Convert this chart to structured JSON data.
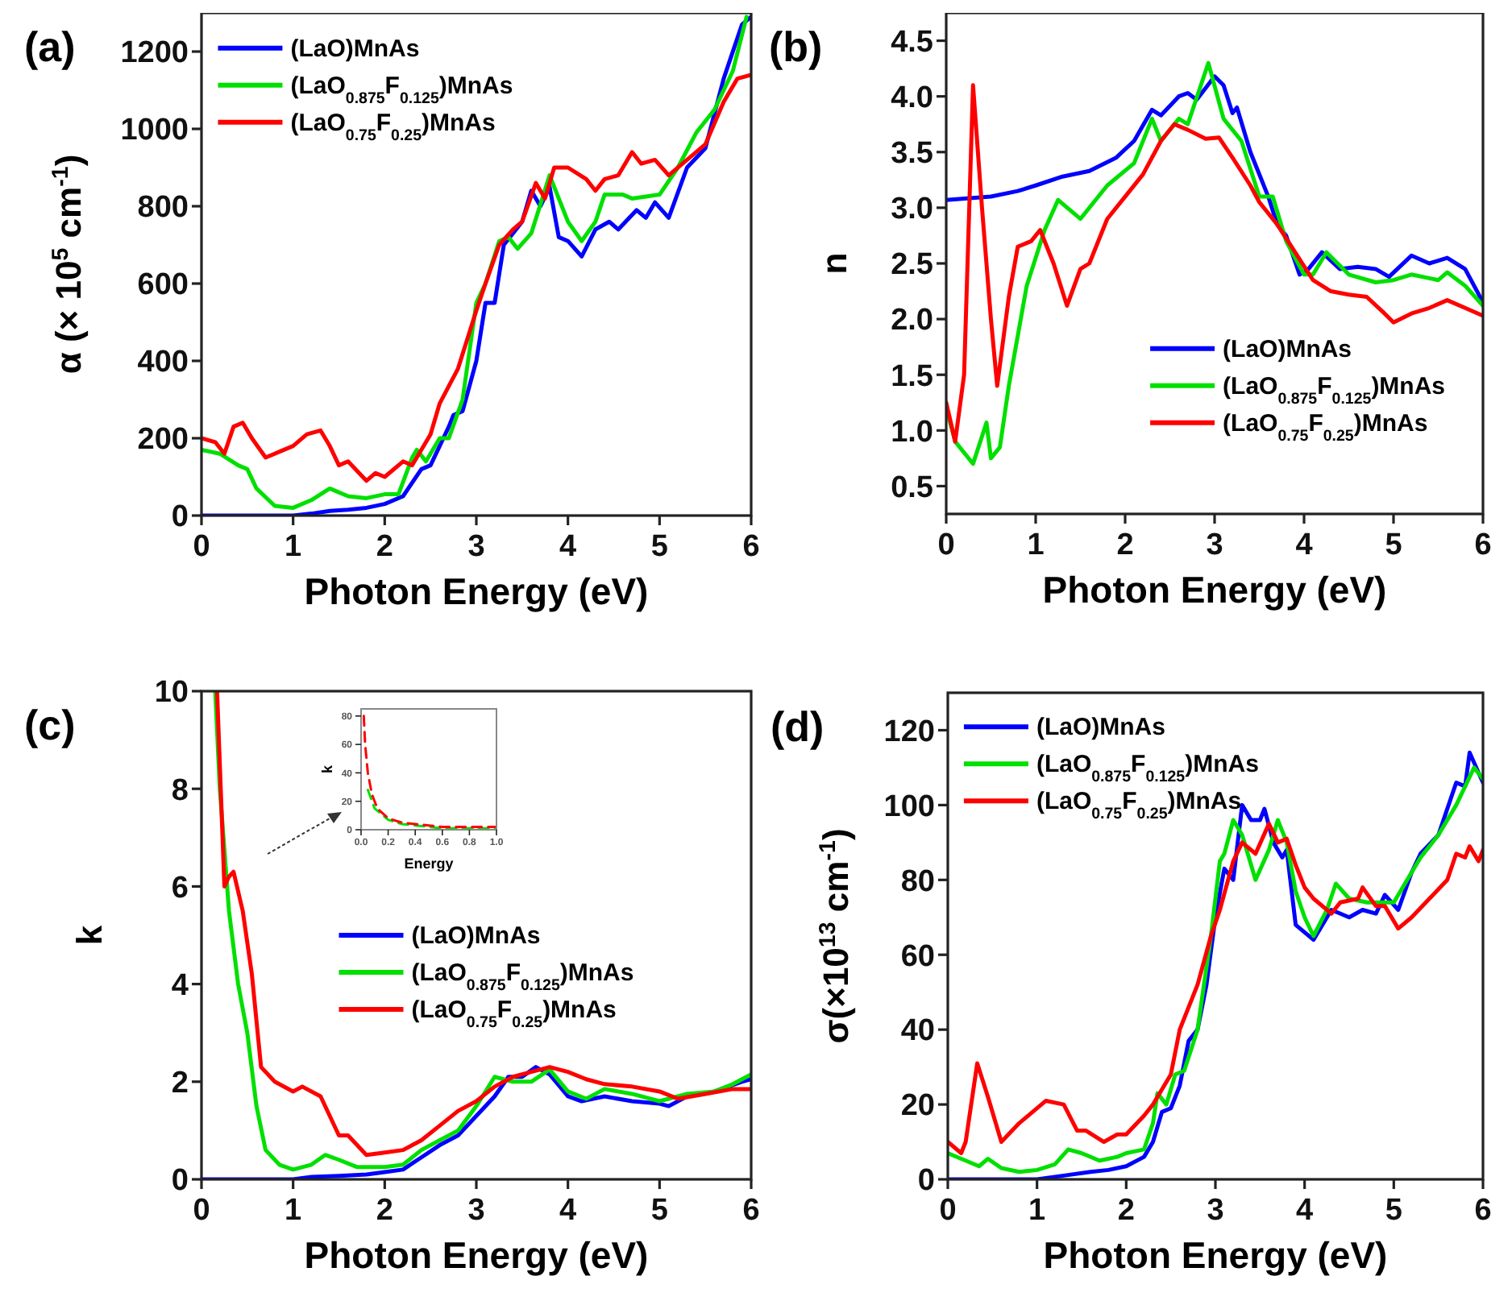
{
  "chart_data": [
    {
      "type": "line",
      "title": "(a)",
      "xlabel": "Photon Energy (eV)",
      "ylabel": "α (× 10$^{5}$ cm$^{-1}$)",
      "xlim": [
        0,
        6
      ],
      "ylim": [
        0,
        1300
      ],
      "xticks": [
        0,
        1,
        2,
        3,
        4,
        5,
        6
      ],
      "yticks": [
        0,
        200,
        400,
        600,
        800,
        1000,
        1200
      ],
      "legend": "top left",
      "series": [
        {
          "name": "(LaO)MnAs",
          "color": "#0000ff",
          "x": [
            0,
            0.5,
            1,
            1.2,
            1.4,
            1.6,
            1.8,
            2,
            2.2,
            2.4,
            2.5,
            2.6,
            2.7,
            2.75,
            2.85,
            3,
            3.1,
            3.2,
            3.3,
            3.4,
            3.5,
            3.6,
            3.7,
            3.8,
            3.9,
            4,
            4.15,
            4.3,
            4.45,
            4.55,
            4.75,
            4.85,
            4.95,
            5.1,
            5.3,
            5.5,
            5.7,
            5.9,
            6
          ],
          "values": [
            0,
            0,
            0,
            5,
            12,
            15,
            20,
            30,
            50,
            120,
            130,
            180,
            230,
            260,
            270,
            400,
            550,
            550,
            700,
            730,
            760,
            840,
            800,
            850,
            720,
            710,
            670,
            740,
            760,
            740,
            790,
            770,
            810,
            770,
            900,
            950,
            1130,
            1270,
            1290
          ]
        },
        {
          "name": "(LaO$_{0.875}$F$_{0.125}$)MnAs",
          "color": "#00e000",
          "x": [
            0,
            0.2,
            0.4,
            0.5,
            0.6,
            0.8,
            1,
            1.2,
            1.4,
            1.6,
            1.8,
            2,
            2.15,
            2.3,
            2.35,
            2.45,
            2.6,
            2.7,
            2.85,
            3,
            3.1,
            3.25,
            3.35,
            3.45,
            3.6,
            3.8,
            4,
            4.15,
            4.3,
            4.4,
            4.6,
            4.7,
            5,
            5.2,
            5.4,
            5.6,
            5.8,
            5.95
          ],
          "values": [
            170,
            160,
            130,
            120,
            70,
            25,
            20,
            40,
            70,
            50,
            45,
            55,
            55,
            150,
            170,
            140,
            200,
            200,
            300,
            550,
            600,
            710,
            720,
            690,
            730,
            880,
            760,
            710,
            760,
            830,
            830,
            820,
            830,
            900,
            990,
            1050,
            1150,
            1290
          ]
        },
        {
          "name": "(LaO$_{0.75}$F$_{0.25}$)MnAs",
          "color": "#ff0000",
          "x": [
            0,
            0.15,
            0.25,
            0.35,
            0.45,
            0.55,
            0.7,
            0.9,
            1,
            1.15,
            1.3,
            1.4,
            1.5,
            1.6,
            1.8,
            1.9,
            2,
            2.2,
            2.3,
            2.5,
            2.6,
            2.8,
            3,
            3.1,
            3.25,
            3.4,
            3.5,
            3.65,
            3.75,
            3.85,
            4,
            4.2,
            4.3,
            4.4,
            4.55,
            4.7,
            4.8,
            4.95,
            5.1,
            5.3,
            5.5,
            5.7,
            5.85,
            6
          ],
          "values": [
            200,
            190,
            160,
            230,
            240,
            200,
            150,
            170,
            180,
            210,
            220,
            180,
            130,
            140,
            90,
            110,
            100,
            140,
            130,
            210,
            290,
            380,
            530,
            600,
            700,
            740,
            760,
            860,
            820,
            900,
            900,
            870,
            840,
            870,
            880,
            940,
            910,
            920,
            880,
            920,
            960,
            1070,
            1130,
            1140
          ]
        }
      ]
    },
    {
      "type": "line",
      "title": "(b)",
      "xlabel": "Photon Energy (eV)",
      "ylabel": "n",
      "xlim": [
        0,
        6
      ],
      "ylim": [
        0.25,
        4.75
      ],
      "xticks": [
        0,
        1,
        2,
        3,
        4,
        5,
        6
      ],
      "yticks": [
        {
          "value": 0.5,
          "label": "0.5"
        },
        {
          "value": 1,
          "label": "1.0"
        },
        {
          "value": 1.5,
          "label": "1.5"
        },
        {
          "value": 2,
          "label": "2.0"
        },
        {
          "value": 2.5,
          "label": "2.5"
        },
        {
          "value": 3,
          "label": "3.0"
        },
        {
          "value": 3.5,
          "label": "3.5"
        },
        {
          "value": 4,
          "label": "4.0"
        },
        {
          "value": 4.5,
          "label": "4.5"
        }
      ],
      "legend": "bottom right",
      "series": [
        {
          "name": "(LaO)MnAs",
          "color": "#0000ff",
          "x": [
            0,
            0.5,
            0.8,
            1,
            1.3,
            1.6,
            1.9,
            2.1,
            2.3,
            2.4,
            2.6,
            2.7,
            2.8,
            3,
            3.1,
            3.2,
            3.25,
            3.4,
            3.6,
            3.7,
            3.8,
            3.95,
            4.05,
            4.2,
            4.4,
            4.6,
            4.8,
            4.95,
            5.2,
            5.4,
            5.6,
            5.8,
            6
          ],
          "values": [
            3.07,
            3.1,
            3.15,
            3.2,
            3.28,
            3.33,
            3.45,
            3.6,
            3.88,
            3.83,
            4,
            4.03,
            3.97,
            4.18,
            4.1,
            3.85,
            3.9,
            3.5,
            3.1,
            2.85,
            2.75,
            2.4,
            2.45,
            2.6,
            2.45,
            2.47,
            2.45,
            2.38,
            2.57,
            2.5,
            2.55,
            2.45,
            2.15
          ]
        },
        {
          "name": "(LaO$_{0.875}$F$_{0.125}$)MnAs",
          "color": "#00e000",
          "x": [
            0,
            0.1,
            0.3,
            0.45,
            0.5,
            0.6,
            0.7,
            0.9,
            1.1,
            1.25,
            1.5,
            1.8,
            2.1,
            2.3,
            2.4,
            2.6,
            2.7,
            2.93,
            3.1,
            3.3,
            3.5,
            3.65,
            3.8,
            4,
            4.1,
            4.25,
            4.5,
            4.8,
            5,
            5.2,
            5.5,
            5.6,
            5.8,
            6
          ],
          "values": [
            1.2,
            0.9,
            0.7,
            1.07,
            0.75,
            0.85,
            1.4,
            2.3,
            2.8,
            3.07,
            2.9,
            3.2,
            3.4,
            3.8,
            3.6,
            3.8,
            3.75,
            4.3,
            3.8,
            3.6,
            3.1,
            3.1,
            2.7,
            2.4,
            2.4,
            2.6,
            2.4,
            2.33,
            2.35,
            2.4,
            2.35,
            2.42,
            2.3,
            2.12
          ]
        },
        {
          "name": "(LaO$_{0.75}$F$_{0.25}$)MnAs",
          "color": "#ff0000",
          "x": [
            0,
            0.1,
            0.2,
            0.3,
            0.4,
            0.5,
            0.57,
            0.7,
            0.8,
            0.95,
            1.05,
            1.2,
            1.35,
            1.5,
            1.6,
            1.8,
            2,
            2.2,
            2.4,
            2.55,
            2.7,
            2.9,
            3.05,
            3.2,
            3.4,
            3.5,
            3.7,
            3.9,
            4.1,
            4.3,
            4.5,
            4.7,
            4.9,
            5,
            5.2,
            5.4,
            5.6,
            5.8,
            6
          ],
          "values": [
            1.25,
            0.9,
            1.5,
            4.1,
            3,
            2,
            1.4,
            2.2,
            2.65,
            2.7,
            2.8,
            2.5,
            2.12,
            2.45,
            2.5,
            2.9,
            3.1,
            3.3,
            3.6,
            3.75,
            3.7,
            3.62,
            3.63,
            3.45,
            3.2,
            3.05,
            2.85,
            2.6,
            2.35,
            2.25,
            2.22,
            2.2,
            2.05,
            1.97,
            2.05,
            2.1,
            2.17,
            2.1,
            2.03
          ]
        }
      ]
    },
    {
      "type": "line",
      "title": "(c)",
      "xlabel": "Photon Energy (eV)",
      "ylabel": "k",
      "xlim": [
        0,
        6
      ],
      "ylim": [
        0,
        10
      ],
      "xticks": [
        0,
        1,
        2,
        3,
        4,
        5,
        6
      ],
      "yticks": [
        0,
        2,
        4,
        6,
        8,
        10
      ],
      "legend": "right",
      "series": [
        {
          "name": "(LaO)MnAs",
          "color": "#0000ff",
          "x": [
            0,
            1,
            1.2,
            1.5,
            1.8,
            2,
            2.2,
            2.4,
            2.6,
            2.8,
            3,
            3.2,
            3.35,
            3.5,
            3.65,
            3.8,
            4,
            4.15,
            4.4,
            4.7,
            5,
            5.1,
            5.3,
            5.6,
            5.9,
            6
          ],
          "values": [
            0,
            0,
            0.05,
            0.07,
            0.1,
            0.15,
            0.2,
            0.45,
            0.7,
            0.9,
            1.3,
            1.7,
            2.1,
            2.1,
            2.3,
            2.15,
            1.7,
            1.6,
            1.7,
            1.6,
            1.55,
            1.5,
            1.7,
            1.8,
            2,
            2.05
          ]
        },
        {
          "name": "(LaO$_{0.875}$F$_{0.125}$)MnAs",
          "color": "#00e000",
          "x": [
            0.15,
            0.2,
            0.3,
            0.4,
            0.5,
            0.6,
            0.7,
            0.85,
            1,
            1.2,
            1.35,
            1.5,
            1.7,
            2,
            2.2,
            2.4,
            2.6,
            2.8,
            3,
            3.2,
            3.4,
            3.6,
            3.8,
            4,
            4.2,
            4.4,
            4.7,
            5,
            5.3,
            5.6,
            5.8,
            6
          ],
          "values": [
            10,
            8,
            5.5,
            4,
            3,
            1.5,
            0.6,
            0.3,
            0.2,
            0.3,
            0.5,
            0.4,
            0.25,
            0.25,
            0.3,
            0.6,
            0.8,
            1,
            1.5,
            2.1,
            2,
            2,
            2.25,
            1.8,
            1.65,
            1.85,
            1.75,
            1.6,
            1.75,
            1.8,
            1.95,
            2.15
          ]
        },
        {
          "name": "(LaO$_{0.75}$F$_{0.25}$)MnAs",
          "color": "#ff0000",
          "x": [
            0.17,
            0.2,
            0.25,
            0.3,
            0.35,
            0.45,
            0.55,
            0.65,
            0.8,
            1,
            1.1,
            1.3,
            1.5,
            1.6,
            1.8,
            2,
            2.2,
            2.4,
            2.6,
            2.8,
            3,
            3.2,
            3.4,
            3.6,
            3.8,
            4,
            4.2,
            4.4,
            4.7,
            5,
            5.2,
            5.5,
            5.8,
            6
          ],
          "values": [
            10,
            8.5,
            6,
            6.2,
            6.3,
            5.5,
            4.2,
            2.3,
            2,
            1.8,
            1.9,
            1.7,
            0.9,
            0.9,
            0.5,
            0.55,
            0.6,
            0.8,
            1.1,
            1.4,
            1.6,
            1.9,
            2.1,
            2.2,
            2.3,
            2.2,
            2.05,
            1.95,
            1.9,
            1.8,
            1.65,
            1.75,
            1.85,
            1.85
          ]
        }
      ]
    },
    {
      "type": "line",
      "title": "(d)",
      "xlabel": "Photon Energy (eV)",
      "ylabel": "σ(×10$^{13}$ cm$^{-1}$)",
      "xlim": [
        0,
        6
      ],
      "ylim": [
        0,
        130
      ],
      "xticks": [
        0,
        1,
        2,
        3,
        4,
        5,
        6
      ],
      "yticks": [
        0,
        20,
        40,
        60,
        80,
        100,
        120
      ],
      "legend": "top left",
      "series": [
        {
          "name": "(LaO)MnAs",
          "color": "#0000ff",
          "x": [
            0,
            1,
            1.3,
            1.6,
            1.8,
            2,
            2.2,
            2.3,
            2.4,
            2.5,
            2.6,
            2.7,
            2.8,
            2.9,
            3,
            3.1,
            3.2,
            3.3,
            3.4,
            3.5,
            3.55,
            3.65,
            3.75,
            3.8,
            3.9,
            4,
            4.1,
            4.3,
            4.5,
            4.65,
            4.8,
            4.9,
            5.05,
            5.2,
            5.3,
            5.5,
            5.7,
            5.8,
            5.85,
            6
          ],
          "values": [
            0,
            0,
            1,
            2,
            2.5,
            3.5,
            6,
            10,
            18,
            19,
            25,
            37,
            40,
            52,
            70,
            83,
            80,
            100,
            96,
            96,
            99,
            90,
            86,
            88,
            68,
            66,
            64,
            72,
            70,
            72,
            71,
            76,
            72,
            82,
            87,
            92,
            106,
            105,
            114,
            106
          ]
        },
        {
          "name": "(LaO$_{0.875}$F$_{0.125}$)MnAs",
          "color": "#00e000",
          "x": [
            0,
            0.2,
            0.35,
            0.45,
            0.6,
            0.8,
            1,
            1.2,
            1.35,
            1.5,
            1.7,
            1.9,
            2,
            2.2,
            2.3,
            2.35,
            2.45,
            2.55,
            2.65,
            2.8,
            2.95,
            3.05,
            3.1,
            3.2,
            3.3,
            3.45,
            3.6,
            3.7,
            3.8,
            3.9,
            4,
            4.1,
            4.25,
            4.35,
            4.5,
            4.7,
            5,
            5.15,
            5.3,
            5.5,
            5.7,
            5.9,
            6
          ],
          "values": [
            7,
            5,
            3.5,
            5.5,
            3,
            2,
            2.5,
            4,
            8,
            7,
            5,
            6,
            7,
            8,
            15,
            23,
            20,
            28,
            29,
            40,
            65,
            85,
            87,
            96,
            92,
            80,
            88,
            96,
            90,
            77,
            70,
            65,
            72,
            79,
            75,
            74,
            74,
            80,
            86,
            92,
            100,
            110,
            107
          ]
        },
        {
          "name": "(LaO$_{0.75}$F$_{0.25}$)MnAs",
          "color": "#ff0000",
          "x": [
            0,
            0.15,
            0.2,
            0.33,
            0.45,
            0.6,
            0.8,
            0.95,
            1.1,
            1.3,
            1.45,
            1.55,
            1.75,
            1.9,
            2,
            2.2,
            2.3,
            2.5,
            2.6,
            2.8,
            2.95,
            3.05,
            3.2,
            3.3,
            3.45,
            3.6,
            3.7,
            3.8,
            3.9,
            4,
            4.1,
            4.3,
            4.4,
            4.6,
            4.65,
            4.8,
            4.9,
            5.05,
            5.2,
            5.4,
            5.6,
            5.7,
            5.8,
            5.85,
            5.95,
            6
          ],
          "values": [
            10,
            7,
            10,
            31,
            22,
            10,
            15,
            18,
            21,
            20,
            13,
            13,
            10,
            12,
            12,
            17,
            20,
            28,
            40,
            52,
            65,
            72,
            85,
            90,
            87,
            95,
            90,
            91,
            84,
            78,
            75,
            71,
            74,
            75,
            78,
            73,
            73,
            67,
            70,
            75,
            80,
            87,
            86,
            89,
            85,
            88
          ]
        }
      ]
    },
    {
      "type": "line",
      "xlabel": "Energy",
      "ylabel": "k",
      "xlim": [
        0,
        1
      ],
      "ylim": [
        0,
        85
      ],
      "xticks": [
        {
          "value": 0,
          "label": "0.0"
        },
        {
          "value": 0.2,
          "label": "0.2"
        },
        {
          "value": 0.4,
          "label": "0.4"
        },
        {
          "value": 0.6,
          "label": "0.6"
        },
        {
          "value": 0.8,
          "label": "0.8"
        },
        {
          "value": 1,
          "label": "1.0"
        }
      ],
      "yticks": [
        0,
        20,
        40,
        60,
        80
      ],
      "line_style": "dashed",
      "series": [
        {
          "color": "#00e000",
          "x": [
            0.05,
            0.1,
            0.2,
            0.3,
            0.4,
            0.6,
            0.8,
            1
          ],
          "values": [
            28,
            15,
            7,
            4,
            3,
            1,
            1,
            1
          ]
        },
        {
          "color": "#ff0000",
          "x": [
            0.02,
            0.03,
            0.05,
            0.08,
            0.12,
            0.2,
            0.3,
            0.4,
            0.5,
            0.6,
            0.8,
            1
          ],
          "values": [
            80,
            60,
            40,
            25,
            15,
            8,
            5,
            4,
            3,
            2,
            2,
            2
          ]
        }
      ]
    }
  ]
}
